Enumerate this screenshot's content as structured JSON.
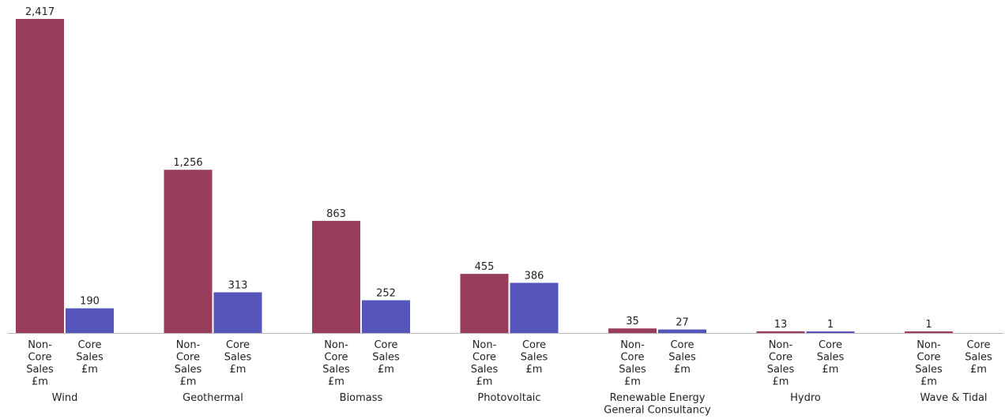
{
  "chart_data": {
    "type": "bar",
    "categories": [
      [
        "Wind"
      ],
      [
        "Geothermal"
      ],
      [
        "Biomass"
      ],
      [
        "Photovoltaic"
      ],
      [
        "Renewable Energy",
        "General Consultancy"
      ],
      [
        "Hydro"
      ],
      [
        "Wave & Tidal"
      ]
    ],
    "series": [
      {
        "name": "Non-Core Sales £m",
        "label_lines": [
          "Non-",
          "Core",
          "Sales",
          "£m"
        ],
        "color": "#993D5C",
        "values": [
          2417,
          1256,
          863,
          455,
          35,
          13,
          1
        ],
        "value_labels": [
          "2,417",
          "1,256",
          "863",
          "455",
          "35",
          "13",
          "1"
        ]
      },
      {
        "name": "Core Sales £m",
        "label_lines": [
          "Core",
          "Sales",
          "£m"
        ],
        "color": "#5555BB",
        "values": [
          190,
          313,
          252,
          386,
          27,
          1,
          0
        ],
        "value_labels": [
          "190",
          "313",
          "252",
          "386",
          "27",
          "1",
          ""
        ]
      }
    ],
    "ylim": [
      0,
      2417
    ],
    "grid": false,
    "legend": "none",
    "title": "",
    "xlabel": "",
    "ylabel": ""
  }
}
